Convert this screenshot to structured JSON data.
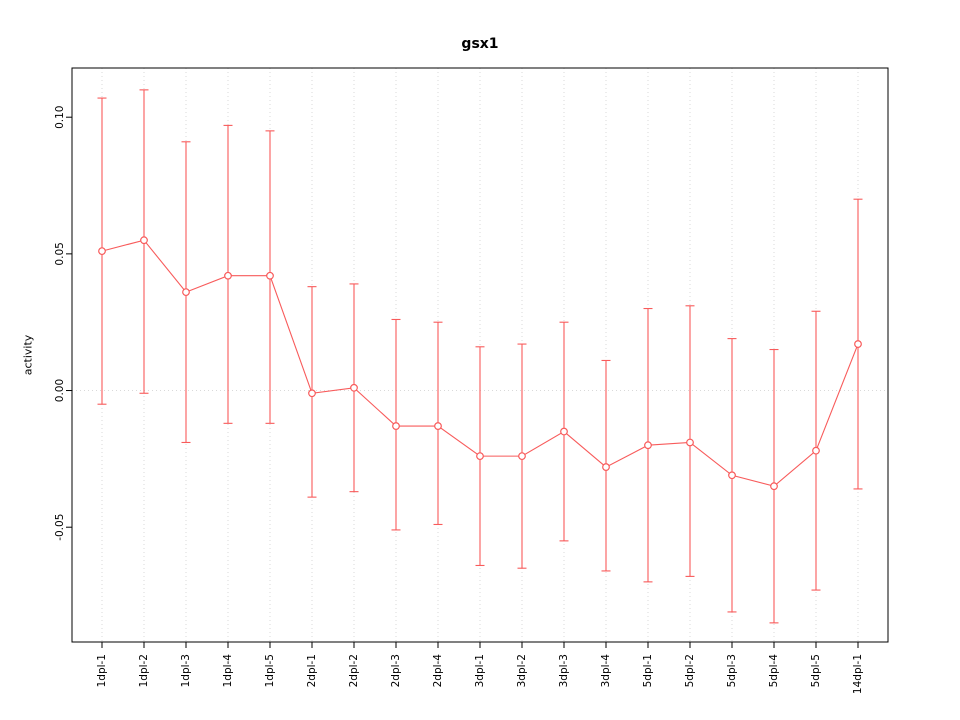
{
  "chart_data": {
    "type": "line",
    "title": "gsx1",
    "xlabel": "",
    "ylabel": "activity",
    "legend": "none",
    "grid": "dotted light-gray vertical line at each category; dotted light-gray horizontal line at y=0",
    "point_style": "open-circle with error bars",
    "series_color": "#f85b5b",
    "grid_color": "#d9d9d9",
    "axis_color": "#000000",
    "ylim": [
      -0.092,
      0.118
    ],
    "yticks": [
      -0.05,
      0.0,
      0.05,
      0.1
    ],
    "ytick_labels": [
      "-0.05",
      "0.00",
      "0.05",
      "0.10"
    ],
    "categories": [
      "1dpl-1",
      "1dpl-2",
      "1dpl-3",
      "1dpl-4",
      "1dpl-5",
      "2dpl-1",
      "2dpl-2",
      "2dpl-3",
      "2dpl-4",
      "3dpl-1",
      "3dpl-2",
      "3dpl-3",
      "3dpl-4",
      "5dpl-1",
      "5dpl-2",
      "5dpl-3",
      "5dpl-4",
      "5dpl-5",
      "14dpl-1"
    ],
    "values": [
      0.051,
      0.055,
      0.036,
      0.042,
      0.042,
      -0.001,
      0.001,
      -0.013,
      -0.013,
      -0.024,
      -0.024,
      -0.015,
      -0.028,
      -0.02,
      -0.019,
      -0.031,
      -0.035,
      -0.022,
      0.017
    ],
    "upper": [
      0.107,
      0.11,
      0.091,
      0.097,
      0.095,
      0.038,
      0.039,
      0.026,
      0.025,
      0.016,
      0.017,
      0.025,
      0.011,
      0.03,
      0.031,
      0.019,
      0.015,
      0.029,
      0.07
    ],
    "lower": [
      -0.005,
      -0.001,
      -0.019,
      -0.012,
      -0.012,
      -0.039,
      -0.037,
      -0.051,
      -0.049,
      -0.064,
      -0.065,
      -0.055,
      -0.066,
      -0.07,
      -0.068,
      -0.081,
      -0.085,
      -0.073,
      -0.036
    ]
  }
}
